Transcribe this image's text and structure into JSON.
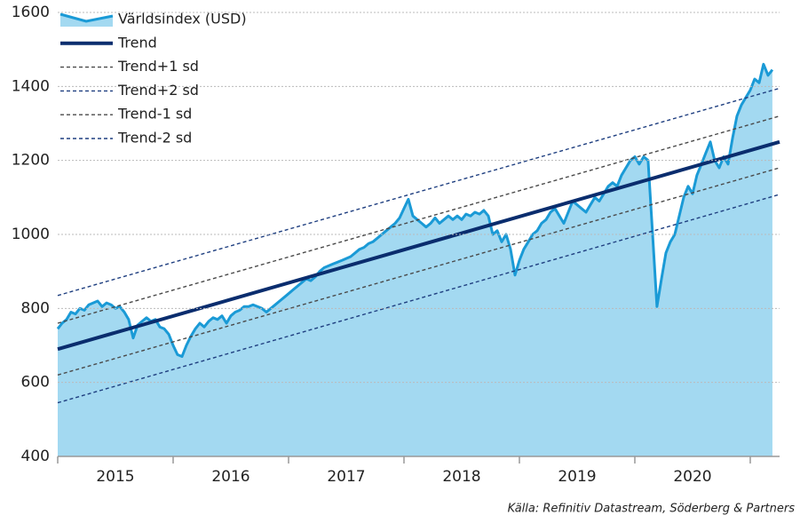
{
  "chart_data": {
    "type": "line",
    "annotation": "Källa: Refinitiv Datastream, Söderberg & Partners",
    "xlim": [
      2015,
      2021.254
    ],
    "xticks": [
      {
        "value": 2015.5,
        "label": "2015"
      },
      {
        "value": 2016.5,
        "label": "2016"
      },
      {
        "value": 2017.5,
        "label": "2017"
      },
      {
        "value": 2018.5,
        "label": "2018"
      },
      {
        "value": 2019.5,
        "label": "2019"
      },
      {
        "value": 2020.5,
        "label": "2020"
      }
    ],
    "ylim": [
      400,
      1600
    ],
    "yticks": [
      400,
      600,
      800,
      1000,
      1200,
      1400,
      1600
    ],
    "grid": true,
    "legend": "top-left",
    "series": [
      {
        "name": "Världsindex (USD)",
        "color": "#1a9ad6",
        "fill": "#a3d9f1",
        "style": "area",
        "x": [
          2015,
          2015.038,
          2015.077,
          2015.115,
          2015.154,
          2015.192,
          2015.231,
          2015.269,
          2015.308,
          2015.346,
          2015.385,
          2015.423,
          2015.462,
          2015.5,
          2015.538,
          2015.577,
          2015.615,
          2015.654,
          2015.692,
          2015.731,
          2015.769,
          2015.808,
          2015.846,
          2015.885,
          2015.923,
          2015.962,
          2016,
          2016.038,
          2016.077,
          2016.115,
          2016.154,
          2016.192,
          2016.231,
          2016.269,
          2016.308,
          2016.346,
          2016.385,
          2016.423,
          2016.462,
          2016.5,
          2016.538,
          2016.577,
          2016.615,
          2016.654,
          2016.692,
          2016.731,
          2016.769,
          2016.808,
          2016.846,
          2016.885,
          2016.923,
          2016.962,
          2017,
          2017.038,
          2017.077,
          2017.115,
          2017.154,
          2017.192,
          2017.231,
          2017.269,
          2017.308,
          2017.346,
          2017.385,
          2017.423,
          2017.462,
          2017.5,
          2017.538,
          2017.577,
          2017.615,
          2017.654,
          2017.692,
          2017.731,
          2017.769,
          2017.808,
          2017.846,
          2017.885,
          2017.923,
          2017.962,
          2018,
          2018.038,
          2018.077,
          2018.115,
          2018.154,
          2018.192,
          2018.231,
          2018.269,
          2018.308,
          2018.346,
          2018.385,
          2018.423,
          2018.462,
          2018.5,
          2018.538,
          2018.577,
          2018.615,
          2018.654,
          2018.692,
          2018.731,
          2018.769,
          2018.808,
          2018.846,
          2018.885,
          2018.923,
          2018.962,
          2019,
          2019.038,
          2019.077,
          2019.115,
          2019.154,
          2019.192,
          2019.231,
          2019.269,
          2019.308,
          2019.346,
          2019.385,
          2019.423,
          2019.462,
          2019.5,
          2019.538,
          2019.577,
          2019.615,
          2019.654,
          2019.692,
          2019.731,
          2019.769,
          2019.808,
          2019.846,
          2019.885,
          2019.923,
          2019.962,
          2020,
          2020.038,
          2020.077,
          2020.115,
          2020.154,
          2020.192,
          2020.231,
          2020.269,
          2020.308,
          2020.346,
          2020.385,
          2020.423,
          2020.462,
          2020.5,
          2020.538,
          2020.577,
          2020.615,
          2020.654,
          2020.692,
          2020.731,
          2020.769,
          2020.808,
          2020.846,
          2020.885,
          2020.923,
          2020.962,
          2021,
          2021.038,
          2021.077,
          2021.115,
          2021.154,
          2021.192
        ],
        "values": [
          745,
          760,
          770,
          790,
          785,
          800,
          795,
          810,
          815,
          820,
          805,
          815,
          810,
          800,
          805,
          790,
          770,
          720,
          755,
          765,
          775,
          765,
          770,
          750,
          745,
          730,
          700,
          675,
          670,
          700,
          725,
          745,
          760,
          750,
          765,
          775,
          770,
          780,
          760,
          780,
          790,
          795,
          805,
          805,
          810,
          805,
          800,
          790,
          800,
          810,
          820,
          830,
          840,
          850,
          860,
          870,
          880,
          875,
          885,
          900,
          910,
          915,
          920,
          925,
          930,
          935,
          940,
          950,
          960,
          965,
          975,
          980,
          990,
          1000,
          1010,
          1020,
          1030,
          1045,
          1070,
          1095,
          1050,
          1040,
          1030,
          1020,
          1030,
          1045,
          1030,
          1040,
          1050,
          1040,
          1050,
          1040,
          1055,
          1050,
          1060,
          1055,
          1065,
          1050,
          1000,
          1010,
          980,
          1000,
          960,
          890,
          930,
          960,
          980,
          1000,
          1010,
          1030,
          1040,
          1060,
          1070,
          1050,
          1030,
          1060,
          1090,
          1080,
          1070,
          1060,
          1080,
          1100,
          1090,
          1110,
          1130,
          1140,
          1130,
          1160,
          1180,
          1200,
          1210,
          1190,
          1210,
          1200,
          1000,
          805,
          880,
          950,
          980,
          1000,
          1050,
          1100,
          1130,
          1110,
          1160,
          1190,
          1220,
          1250,
          1200,
          1180,
          1210,
          1190,
          1260,
          1320,
          1350,
          1370,
          1390,
          1420,
          1410,
          1460,
          1430,
          1445
        ]
      },
      {
        "name": "Trend",
        "color": "#0a2d6e",
        "style": "solid",
        "x": [
          2015,
          2021.254
        ],
        "values": [
          690,
          1250
        ]
      },
      {
        "name": "Trend+1 sd",
        "color": "#4a4a4a",
        "style": "dashed",
        "x": [
          2015,
          2021.254
        ],
        "values": [
          760,
          1320
        ]
      },
      {
        "name": "Trend+2 sd",
        "color": "#1f3f80",
        "style": "dashed",
        "x": [
          2015,
          2021.254
        ],
        "values": [
          835,
          1395
        ]
      },
      {
        "name": "Trend-1 sd",
        "color": "#4a4a4a",
        "style": "dashed",
        "x": [
          2015,
          2021.254
        ],
        "values": [
          620,
          1180
        ]
      },
      {
        "name": "Trend-2 sd",
        "color": "#1f3f80",
        "style": "dashed",
        "x": [
          2015,
          2021.254
        ],
        "values": [
          545,
          1108
        ]
      }
    ]
  }
}
